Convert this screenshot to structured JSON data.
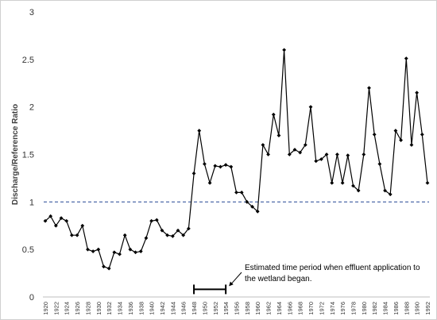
{
  "chart_data": {
    "type": "line",
    "title": "",
    "xlabel": "",
    "ylabel": "Discharge/Reference Ratio",
    "ylim": [
      0,
      3
    ],
    "yticks": [
      "0",
      "0.5",
      "1",
      "1.5",
      "2",
      "2.5",
      "3"
    ],
    "xlim": [
      1920,
      1992
    ],
    "xtick_labels": [
      "1920",
      "1922",
      "1924",
      "1926",
      "1928",
      "1930",
      "1932",
      "1934",
      "1936",
      "1938",
      "1940",
      "1942",
      "1944",
      "1946",
      "1948",
      "1950",
      "1952",
      "1954",
      "1956",
      "1958",
      "1960",
      "1962",
      "1964",
      "1966",
      "1968",
      "1970",
      "1972",
      "1974",
      "1976",
      "1978",
      "1980",
      "1982",
      "1984",
      "1986",
      "1988",
      "1990",
      "1992"
    ],
    "grid": false,
    "legend": "none",
    "series_color": "#000000",
    "series": [
      {
        "x": [
          1920,
          1921,
          1922,
          1923,
          1924,
          1925,
          1926,
          1927,
          1928,
          1929,
          1930,
          1931,
          1932,
          1933,
          1934,
          1935,
          1936,
          1937,
          1938,
          1939,
          1940,
          1941,
          1942,
          1943,
          1944,
          1945,
          1946,
          1947,
          1948,
          1949,
          1950,
          1951,
          1952,
          1953,
          1954,
          1955,
          1956,
          1957,
          1958,
          1959,
          1960,
          1961,
          1962,
          1963,
          1964,
          1965,
          1966,
          1967,
          1968,
          1969,
          1970,
          1971,
          1972,
          1973,
          1974,
          1975,
          1976,
          1977,
          1978,
          1979,
          1980,
          1981,
          1982,
          1983,
          1984,
          1985,
          1986,
          1987,
          1988,
          1989,
          1990,
          1991,
          1992
        ],
        "y": [
          0.8,
          0.85,
          0.75,
          0.83,
          0.8,
          0.65,
          0.65,
          0.75,
          0.5,
          0.48,
          0.5,
          0.32,
          0.3,
          0.47,
          0.45,
          0.65,
          0.5,
          0.47,
          0.48,
          0.62,
          0.8,
          0.81,
          0.7,
          0.65,
          0.64,
          0.7,
          0.65,
          0.72,
          1.3,
          1.75,
          1.4,
          1.2,
          1.38,
          1.37,
          1.39,
          1.37,
          1.1,
          1.1,
          1.0,
          0.95,
          0.9,
          1.6,
          1.5,
          1.92,
          1.7,
          2.6,
          1.5,
          1.55,
          1.52,
          1.6,
          2.0,
          1.43,
          1.45,
          1.5,
          1.2,
          1.5,
          1.2,
          1.49,
          1.17,
          1.12,
          1.5,
          2.2,
          1.71,
          1.4,
          1.12,
          1.08,
          1.75,
          1.65,
          2.51,
          1.6,
          2.15,
          1.71,
          1.2
        ]
      }
    ],
    "reference_line": {
      "y": 1.0,
      "style": "dashed",
      "color": "#3a5aa0"
    },
    "period_bar": {
      "x_start": 1948,
      "x_end": 1954,
      "y": 0.08
    },
    "annotation": {
      "lines": [
        "Estimated time period when effluent application to",
        "the wetland began."
      ],
      "arrow_to_x": 1954
    }
  }
}
